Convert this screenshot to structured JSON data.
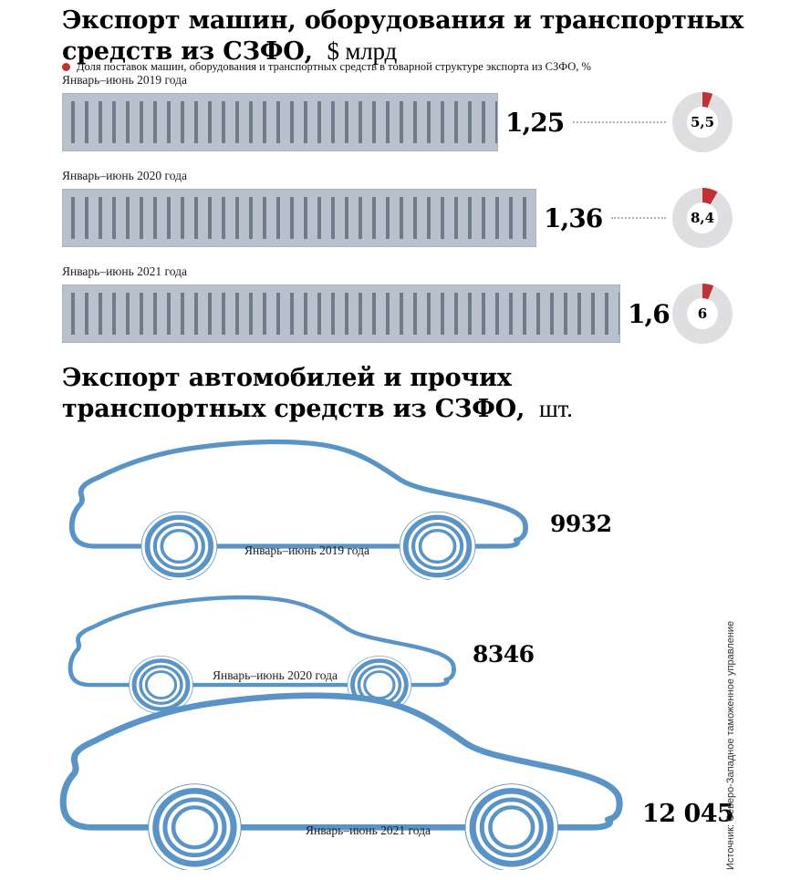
{
  "section1": {
    "title": "Экспорт машин, оборудования и транспортных средств из СЗФО,",
    "title_unit": "$ млрд",
    "legend": "Доля поставок машин, оборудования и транспортных средств в товарной структуре экспорта из СЗФО, %",
    "bar_color": "#b9c2cc",
    "stripe_color": "#6d7b8b",
    "donut_ring_color": "#dfdfe1",
    "accent_red": "#c03137",
    "rows": [
      {
        "label": "Январь–июнь 2019 года",
        "value": "1,25",
        "value_num": 1.25,
        "share": "5,5",
        "share_pct": 5.5
      },
      {
        "label": "Январь–июнь 2020 года",
        "value": "1,36",
        "value_num": 1.36,
        "share": "8,4",
        "share_pct": 8.4
      },
      {
        "label": "Январь–июнь 2021 года",
        "value": "1,6",
        "value_num": 1.6,
        "share": "6",
        "share_pct": 6
      }
    ]
  },
  "section2": {
    "title": "Экспорт автомобилей и прочих транспортных средств из СЗФО,",
    "title_unit": "шт.",
    "car_color": "#5a94c7",
    "cars": [
      {
        "label": "Январь–июнь 2019 года",
        "value": "9932",
        "value_num": 9932
      },
      {
        "label": "Январь–июнь 2020 года",
        "value": "8346",
        "value_num": 8346
      },
      {
        "label": "Январь–июнь 2021 года",
        "value": "12 045",
        "value_num": 12045
      }
    ]
  },
  "source": "Источник: Северо-Западное таможенное управление",
  "chart_data": [
    {
      "type": "bar",
      "title": "Экспорт машин, оборудования и транспортных средств из СЗФО, $ млрд",
      "categories": [
        "Январь–июнь 2019 года",
        "Январь–июнь 2020 года",
        "Январь–июнь 2021 года"
      ],
      "series": [
        {
          "name": "Экспорт, $ млрд",
          "values": [
            1.25,
            1.36,
            1.6
          ]
        },
        {
          "name": "Доля поставок машин, оборудования и транспортных средств в товарной структуре экспорта из СЗФО, %",
          "values": [
            5.5,
            8.4,
            6
          ]
        }
      ],
      "xlabel": "",
      "ylabel": "$ млрд",
      "xlim": [
        0,
        1.6
      ],
      "grid": false,
      "legend_position": "top",
      "orientation": "horizontal"
    },
    {
      "type": "bar",
      "title": "Экспорт автомобилей и прочих транспортных средств из СЗФО, шт.",
      "categories": [
        "Январь–июнь 2019 года",
        "Январь–июнь 2020 года",
        "Январь–июнь 2021 года"
      ],
      "values": [
        9932,
        8346,
        12045
      ],
      "xlabel": "",
      "ylabel": "шт.",
      "grid": false,
      "legend_position": "none",
      "orientation": "horizontal",
      "style": "pictogram-cars"
    }
  ]
}
